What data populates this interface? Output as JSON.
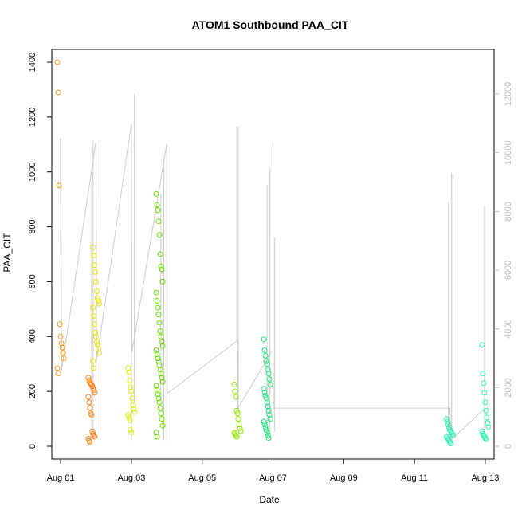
{
  "chart_data": {
    "type": "scatter",
    "title": "ATOM1 Southbound PAA_CIT",
    "xlabel": "Date",
    "ylabel": "PAA_CIT",
    "x_axis": {
      "type": "date",
      "range": [
        "2023-07-31T18:00",
        "2023-08-13T06:00"
      ],
      "ticks": [
        {
          "label": "Aug 01",
          "value": "2023-08-01"
        },
        {
          "label": "Aug 03",
          "value": "2023-08-03"
        },
        {
          "label": "Aug 05",
          "value": "2023-08-05"
        },
        {
          "label": "Aug 07",
          "value": "2023-08-07"
        },
        {
          "label": "Aug 09",
          "value": "2023-08-09"
        },
        {
          "label": "Aug 11",
          "value": "2023-08-11"
        },
        {
          "label": "Aug 13",
          "value": "2023-08-13"
        }
      ]
    },
    "y_axis_left": {
      "range": [
        0,
        1400
      ],
      "ticks": [
        {
          "label": "0",
          "value": 0
        },
        {
          "label": "200",
          "value": 200
        },
        {
          "label": "400",
          "value": 400
        },
        {
          "label": "600",
          "value": 600
        },
        {
          "label": "800",
          "value": 800
        },
        {
          "label": "1000",
          "value": 1000
        },
        {
          "label": "1200",
          "value": 1200
        },
        {
          "label": "1400",
          "value": 1400
        }
      ]
    },
    "y_axis_right": {
      "range": [
        0,
        12000
      ],
      "color": "#bdbdbd",
      "ticks": [
        {
          "label": "0",
          "value": 0
        },
        {
          "label": "2000",
          "value": 2000
        },
        {
          "label": "4000",
          "value": 4000
        },
        {
          "label": "6000",
          "value": 6000
        },
        {
          "label": "8000",
          "value": 8000
        },
        {
          "label": "10000",
          "value": 10000
        },
        {
          "label": "12000",
          "value": 12000
        }
      ]
    },
    "grid": false,
    "legend": "none",
    "series": [
      {
        "kind": "points",
        "marker": "open-circle",
        "colors": {
          "Aug 01": "#f39c1a",
          "Aug 02": "#f7861c",
          "Aug 03": "#e5e400",
          "Aug 04": "#d6ee00",
          "Aug 06": "#6adc00",
          "Aug 07": "#8fe600",
          "Aug 12": "#1fe87a",
          "Aug 13": "#2ff0b4"
        },
        "clusters": [
          {
            "date": "2023-08-01T00:00",
            "values": [
              1400,
              1290,
              950,
              445,
              400,
              375,
              360,
              340,
              320,
              285,
              265
            ]
          },
          {
            "date": "2023-08-01T21:00",
            "values": [
              250,
              240,
              232,
              228,
              225,
              218,
              212,
              205,
              195,
              180,
              160,
              140,
              120,
              115,
              55,
              45,
              40,
              35,
              28,
              20,
              15
            ]
          },
          {
            "date": "2023-08-02T00:00",
            "values": [
              725,
              695,
              660,
              635,
              600,
              565,
              540,
              530,
              520,
              505,
              475,
              445,
              415,
              400,
              380,
              370,
              355,
              340,
              310,
              285
            ]
          },
          {
            "date": "2023-08-03T00:00",
            "values": [
              285,
              270,
              240,
              215,
              200,
              175,
              150,
              135,
              125,
              115,
              105,
              95,
              60,
              50
            ]
          },
          {
            "date": "2023-08-03T19:00",
            "values": [
              920,
              880,
              860,
              820,
              770,
              700,
              655,
              645,
              600,
              560,
              530,
              505,
              480,
              450,
              420,
              400,
              380,
              365,
              350,
              335,
              320,
              310,
              295,
              280,
              265,
              250,
              235,
              220,
              205,
              190,
              175,
              160,
              140,
              120,
              100,
              75,
              50,
              35
            ]
          },
          {
            "date": "2023-08-06T00:00",
            "values": [
              225,
              200,
              180,
              130,
              120,
              100,
              80,
              65,
              55,
              50,
              45,
              40,
              35
            ]
          },
          {
            "date": "2023-08-06T20:00",
            "values": [
              390,
              350,
              330,
              310,
              300,
              280,
              265,
              245,
              225,
              210,
              195,
              185,
              175,
              160,
              145,
              130,
              115,
              100,
              90,
              80,
              70,
              60,
              50,
              40,
              30
            ]
          },
          {
            "date": "2023-08-12T00:00",
            "values": [
              100,
              90,
              80,
              70,
              60,
              55,
              50,
              45,
              40,
              35,
              30,
              25,
              20,
              15,
              10
            ]
          },
          {
            "date": "2023-08-13T00:00",
            "values": [
              370,
              265,
              230,
              195,
              160,
              130,
              105,
              85,
              70,
              55,
              45,
              40,
              35,
              30,
              25
            ]
          }
        ]
      },
      {
        "kind": "line",
        "axis": "right",
        "color": "#cccccc",
        "path": [
          {
            "date": "2023-08-01T00:00",
            "value": 10500
          },
          {
            "date": "2023-08-01T00:20",
            "value": 6500
          },
          {
            "date": "2023-08-01T00:40",
            "value": 2600
          },
          {
            "date": "2023-08-02T00:00",
            "value": 10400
          },
          {
            "date": "2023-08-02T00:20",
            "value": 2900
          },
          {
            "date": "2023-08-03T00:00",
            "value": 11000
          },
          {
            "date": "2023-08-03T00:20",
            "value": 3200
          },
          {
            "date": "2023-08-04T00:00",
            "value": 10300
          },
          {
            "date": "2023-08-04T00:20",
            "value": 1800
          },
          {
            "date": "2023-08-06T00:00",
            "value": 3600
          },
          {
            "date": "2023-08-06T00:20",
            "value": 1300
          },
          {
            "date": "2023-08-07T00:00",
            "value": 3300
          },
          {
            "date": "2023-08-07T00:20",
            "value": 1300
          },
          {
            "date": "2023-08-12T00:00",
            "value": 1300
          },
          {
            "date": "2023-08-12T00:20",
            "value": 200
          },
          {
            "date": "2023-08-13T00:00",
            "value": 1300
          }
        ],
        "spikes": [
          {
            "date": "2023-08-01T00:00",
            "bottom": 6500,
            "top": 10500
          },
          {
            "date": "2023-08-01T21:00",
            "bottom": 300,
            "top": 9000
          },
          {
            "date": "2023-08-01T22:00",
            "bottom": 300,
            "top": 10400
          },
          {
            "date": "2023-08-02T00:00",
            "bottom": 500,
            "top": 10400
          },
          {
            "date": "2023-08-03T00:00",
            "bottom": 200,
            "top": 11000
          },
          {
            "date": "2023-08-03T02:00",
            "bottom": 1500,
            "top": 12000
          },
          {
            "date": "2023-08-03T20:00",
            "bottom": 1600,
            "top": 8600
          },
          {
            "date": "2023-08-03T22:00",
            "bottom": 200,
            "top": 9800
          },
          {
            "date": "2023-08-04T00:00",
            "bottom": 200,
            "top": 10300
          },
          {
            "date": "2023-08-05T23:30",
            "bottom": 3600,
            "top": 10900
          },
          {
            "date": "2023-08-06T00:30",
            "bottom": 1500,
            "top": 10900
          },
          {
            "date": "2023-08-06T20:00",
            "bottom": 300,
            "top": 8900
          },
          {
            "date": "2023-08-06T22:00",
            "bottom": 300,
            "top": 9500
          },
          {
            "date": "2023-08-07T00:00",
            "bottom": 300,
            "top": 10400
          },
          {
            "date": "2023-08-07T01:00",
            "bottom": 500,
            "top": 7100
          },
          {
            "date": "2023-08-11T23:00",
            "bottom": 500,
            "top": 8300
          },
          {
            "date": "2023-08-12T01:00",
            "bottom": 500,
            "top": 9300
          },
          {
            "date": "2023-08-12T02:00",
            "bottom": 200,
            "top": 9300
          },
          {
            "date": "2023-08-12T23:30",
            "bottom": 500,
            "top": 8200
          }
        ]
      }
    ]
  }
}
